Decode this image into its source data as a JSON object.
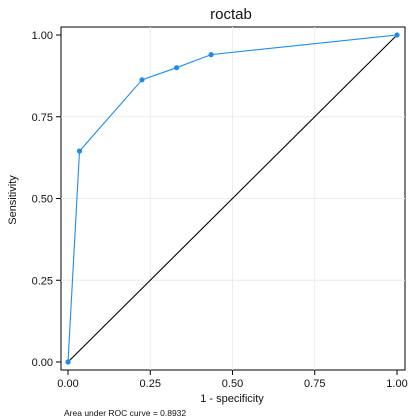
{
  "chart_data": {
    "type": "line",
    "title": "roctab",
    "xlabel": "1 - specificity",
    "ylabel": "Sensitivity",
    "xlim": [
      0,
      1
    ],
    "ylim": [
      0,
      1
    ],
    "xticks": [
      "0.00",
      "0.25",
      "0.50",
      "0.75",
      "1.00"
    ],
    "yticks": [
      "0.00",
      "0.25",
      "0.50",
      "0.75",
      "1.00"
    ],
    "grid": true,
    "series": [
      {
        "color": "#1f8ceb",
        "marker": "circle",
        "x": [
          0,
          0.035,
          0.225,
          0.33,
          0.435,
          1.0
        ],
        "y": [
          0,
          0.645,
          0.863,
          0.9,
          0.94,
          1.0
        ]
      },
      {
        "color": "#000000",
        "marker": "none",
        "x": [
          0,
          1
        ],
        "y": [
          0,
          1
        ]
      }
    ],
    "note": "Area under ROC curve = 0.8932"
  }
}
